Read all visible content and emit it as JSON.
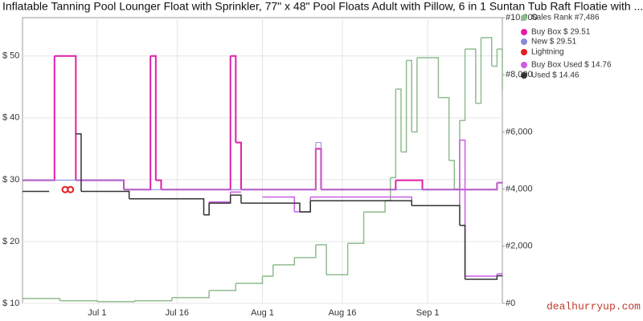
{
  "chart_data": {
    "type": "step",
    "title": "Inflatable Tanning Pool Lounger Float with Sprinkler, 77\" x 48\" Pool Floats Adult with Pillow, 6 in 1 Suntan Tub Raft Floatie with ...",
    "watermark": "dealhurryup.com",
    "xlim": [
      "Jun 17",
      "Sep 15"
    ],
    "xticks": [
      "Jul 1",
      "Jul 16",
      "Aug 1",
      "Aug 16",
      "Sep 1"
    ],
    "ylim": [
      10,
      56.2
    ],
    "yticks": [
      {
        "value": 10,
        "label": "$ 10"
      },
      {
        "value": 20,
        "label": "$ 20"
      },
      {
        "value": 30,
        "label": "$ 30"
      },
      {
        "value": 40,
        "label": "$ 40"
      },
      {
        "value": 50,
        "label": "$ 50"
      }
    ],
    "y2lim": [
      0,
      10000
    ],
    "y2ticks": [
      {
        "value": 0,
        "label": "#0"
      },
      {
        "value": 2000,
        "label": "#2,000"
      },
      {
        "value": 4000,
        "label": "#4,000"
      },
      {
        "value": 6000,
        "label": "#6,000"
      },
      {
        "value": 8000,
        "label": "#8,000"
      },
      {
        "value": 10000,
        "label": "#10,000"
      }
    ],
    "grid": true,
    "series": [
      {
        "name": "Sales Rank  #7,486",
        "color": "#8fbc8f",
        "axis": "y2",
        "width": 1.5,
        "x": [
          "Jun 17",
          "Jun 24",
          "Jul 1",
          "Jul 8",
          "Jul 15",
          "Jul 22",
          "Jul 27",
          "Aug 1",
          "Aug 3",
          "Aug 7",
          "Aug 11",
          "Aug 13",
          "Aug 17",
          "Aug 20",
          "Aug 24",
          "Aug 25",
          "Aug 26",
          "Aug 27",
          "Aug 28",
          "Aug 29",
          "Aug 30",
          "Sep 2",
          "Sep 3",
          "Sep 5",
          "Sep 6",
          "Sep 7",
          "Sep 8",
          "Sep 10",
          "Sep 11",
          "Sep 13",
          "Sep 14",
          "Sep 15"
        ],
        "values": [
          170,
          90,
          60,
          90,
          200,
          450,
          700,
          950,
          1350,
          1600,
          2050,
          1000,
          2100,
          3200,
          3600,
          4400,
          7500,
          5300,
          8500,
          6000,
          8600,
          8600,
          7200,
          5000,
          4000,
          6400,
          8900,
          7000,
          9300,
          8300,
          8900,
          7486
        ]
      },
      {
        "name": "Buy Box  $ 29.51",
        "color": "#e020a8",
        "width": 2,
        "x": [
          "Jun 17",
          "Jun 23",
          "Jun 27",
          "Jul 6",
          "Jul 11",
          "Jul 12",
          "Jul 13",
          "Jul 26",
          "Jul 27",
          "Jul 28",
          "Aug 11",
          "Aug 12",
          "Aug 26",
          "Aug 31",
          "Sep 14",
          "Sep 15"
        ],
        "values": [
          29.9,
          50,
          29.9,
          28.4,
          50,
          29.9,
          28.4,
          50,
          36,
          28.4,
          35,
          28.4,
          29.9,
          28.4,
          29.51,
          29.51
        ]
      },
      {
        "name": "New  $ 29.51",
        "color": "#8888dd",
        "width": 1,
        "x": [
          "Jun 17",
          "Jul 6",
          "Aug 11",
          "Aug 12",
          "Sep 14",
          "Sep 15"
        ],
        "values": [
          29.9,
          28.4,
          36,
          28.4,
          29.51,
          29.51
        ]
      },
      {
        "name": "Lightning",
        "color": "#e51c23",
        "marker": "circle",
        "x": [
          "Jun 25",
          "Jun 26"
        ],
        "values": [
          28.4,
          28.4
        ]
      },
      {
        "name": "Buy Box Used  $ 14.76",
        "color": "#cc5be6",
        "width": 1.5,
        "x": [
          "Jul 21",
          "Jul 22",
          "Jul 26",
          "Jul 28",
          "Aug 1",
          "Aug 7",
          "Aug 10",
          "Aug 29",
          "Sep 7",
          "Sep 8",
          "Sep 14",
          "Sep 15"
        ],
        "values": [
          24.3,
          26.4,
          28,
          null,
          27.2,
          24.8,
          27.2,
          25.8,
          36.4,
          14.4,
          14.76,
          14.76
        ]
      },
      {
        "name": "Used  $ 14.46",
        "color": "#333333",
        "width": 1.5,
        "x": [
          "Jun 17",
          "Jun 22",
          "Jun 27",
          "Jun 28",
          "Jul 7",
          "Jul 13",
          "Jul 21",
          "Jul 22",
          "Jul 26",
          "Jul 28",
          "Aug 8",
          "Aug 10",
          "Aug 29",
          "Sep 7",
          "Sep 8",
          "Sep 14",
          "Sep 15"
        ],
        "values": [
          28.1,
          null,
          37.4,
          28.1,
          26.9,
          26.9,
          24.3,
          26.2,
          27.5,
          26.2,
          24.8,
          26.6,
          25.8,
          22.6,
          13.9,
          14.46,
          14.46
        ]
      }
    ]
  }
}
